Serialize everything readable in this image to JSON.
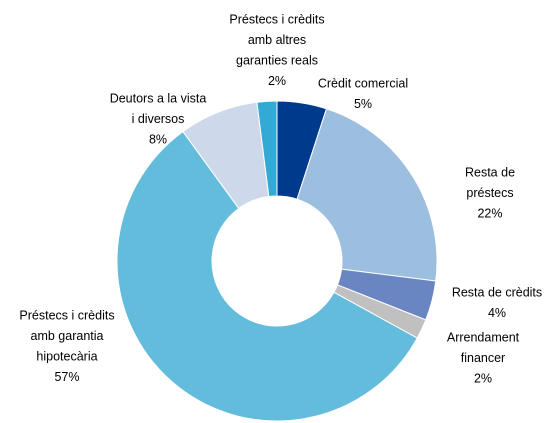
{
  "chart_data": {
    "type": "pie",
    "categories": [
      [
        "Crèdit comercial"
      ],
      [
        "Resta de",
        "préstecs"
      ],
      [
        "Resta de crèdits"
      ],
      [
        "Arrendament",
        "financer"
      ],
      [
        "Préstecs i crèdits",
        "amb garantia",
        "hipotecària"
      ],
      [
        "Deutors a la vista",
        "i diversos"
      ],
      [
        "Préstecs i crèdits",
        "amb altres",
        "garanties reals"
      ]
    ],
    "values": [
      5,
      22,
      4,
      2,
      57,
      8,
      2
    ],
    "value_labels": [
      "5%",
      "22%",
      "4%",
      "2%",
      "57%",
      "8%",
      "2%"
    ],
    "colors": [
      "#003a8c",
      "#9dbfdf",
      "#6a86c2",
      "#c0c0c0",
      "#63bcdc",
      "#cdd8ea",
      "#33a9d6"
    ],
    "donut": true
  }
}
